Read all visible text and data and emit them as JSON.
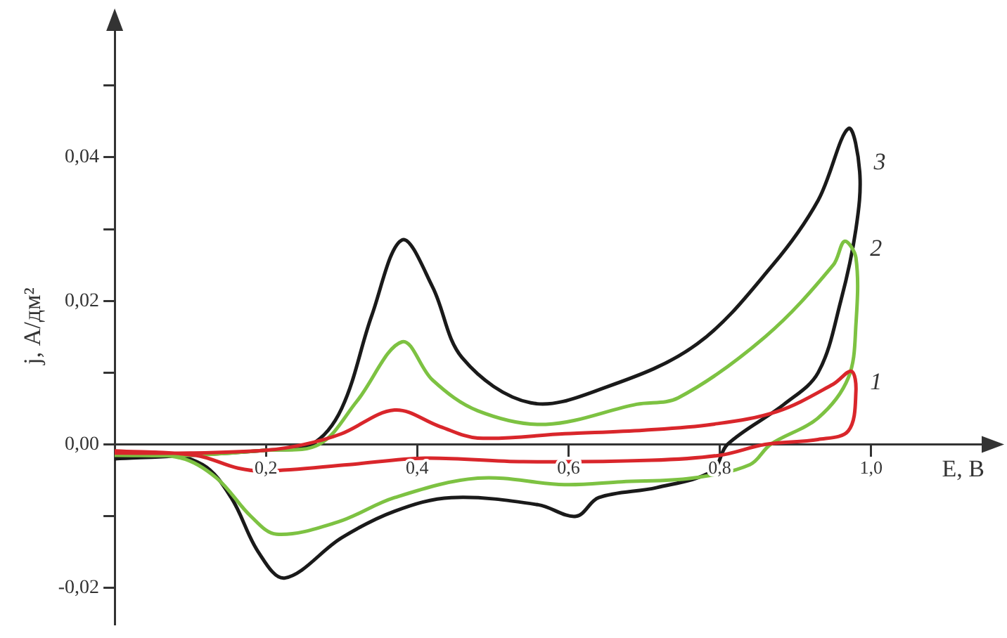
{
  "chart_data": {
    "type": "line",
    "xlabel": "E, В",
    "ylabel": "j, А/дм²",
    "xlim": [
      0,
      1.15
    ],
    "ylim": [
      -0.025,
      0.058
    ],
    "xticks": [
      {
        "value": 0.2,
        "label": "0,2"
      },
      {
        "value": 0.4,
        "label": "0,4"
      },
      {
        "value": 0.6,
        "label": "0,6"
      },
      {
        "value": 0.8,
        "label": "0,8"
      },
      {
        "value": 1.0,
        "label": "1,0"
      }
    ],
    "yticks": [
      {
        "value": -0.02,
        "label": "-0,02"
      },
      {
        "value": -0.01,
        "label": null
      },
      {
        "value": 0,
        "label": "0,00"
      },
      {
        "value": 0.01,
        "label": null
      },
      {
        "value": 0.02,
        "label": "0,02"
      },
      {
        "value": 0.03,
        "label": null
      },
      {
        "value": 0.04,
        "label": "0,04"
      },
      {
        "value": 0.05,
        "label": null
      }
    ],
    "grid": false,
    "legend": false,
    "marker": "none",
    "line_style": "solid",
    "series": [
      {
        "color": "#d9262b",
        "x": [
          0,
          0.1,
          0.2,
          0.25,
          0.3,
          0.37,
          0.43,
          0.48,
          0.595,
          0.7,
          0.79,
          0.876,
          0.95,
          0.974,
          0.98,
          0.97,
          0.93,
          0.86,
          0.8,
          0.71,
          0.54,
          0.41,
          0.31,
          0.2,
          0.163,
          0.107,
          0
        ],
        "values": [
          -0.0012,
          -0.0012,
          -0.0008,
          0,
          0.0015,
          0.0048,
          0.0025,
          0.0009,
          0.0015,
          0.002,
          0.0028,
          0.0046,
          0.0084,
          0.0102,
          0.0074,
          0.0019,
          0.0007,
          0,
          -0.0015,
          -0.0022,
          -0.0024,
          -0.0019,
          -0.0028,
          -0.0037,
          -0.0033,
          -0.0015,
          -0.0009
        ]
      },
      {
        "color": "#7dc242",
        "x": [
          0,
          0.1,
          0.2,
          0.27,
          0.32,
          0.38,
          0.42,
          0.48,
          0.57,
          0.69,
          0.745,
          0.86,
          0.95,
          0.965,
          0.98,
          0.98,
          0.97,
          0.93,
          0.867,
          0.84,
          0.763,
          0.67,
          0.595,
          0.48,
          0.37,
          0.295,
          0.214,
          0.18,
          0.135,
          0.088,
          0
        ],
        "values": [
          -0.0015,
          -0.0015,
          -0.0008,
          0,
          0.006,
          0.0143,
          0.009,
          0.0047,
          0.0028,
          0.0056,
          0.0065,
          0.015,
          0.025,
          0.0283,
          0.026,
          0.0167,
          0.0093,
          0.0037,
          0,
          -0.0028,
          -0.0047,
          -0.0052,
          -0.0056,
          -0.0047,
          -0.0074,
          -0.0108,
          -0.0125,
          -0.01,
          -0.0047,
          -0.0019,
          -0.0013
        ]
      },
      {
        "color": "#1a1a1a",
        "x": [
          0,
          0.1,
          0.2,
          0.26,
          0.3,
          0.34,
          0.38,
          0.42,
          0.46,
          0.55,
          0.65,
          0.77,
          0.87,
          0.93,
          0.97,
          0.985,
          0.98,
          0.96,
          0.93,
          0.885,
          0.81,
          0.79,
          0.717,
          0.64,
          0.61,
          0.56,
          0.445,
          0.37,
          0.3,
          0.225,
          0.19,
          0.154,
          0.116,
          0.05,
          0
        ],
        "values": [
          -0.002,
          -0.0015,
          -0.0008,
          0,
          0.005,
          0.018,
          0.0285,
          0.022,
          0.012,
          0.0058,
          0.008,
          0.014,
          0.025,
          0.034,
          0.044,
          0.038,
          0.03,
          0.02,
          0.01,
          0.0056,
          0,
          -0.0037,
          -0.006,
          -0.0074,
          -0.01,
          -0.0084,
          -0.0074,
          -0.0093,
          -0.013,
          -0.0186,
          -0.015,
          -0.0074,
          -0.0028,
          -0.0011,
          -0.0019
        ]
      }
    ],
    "annotations": [
      "1",
      "2",
      "3"
    ]
  }
}
